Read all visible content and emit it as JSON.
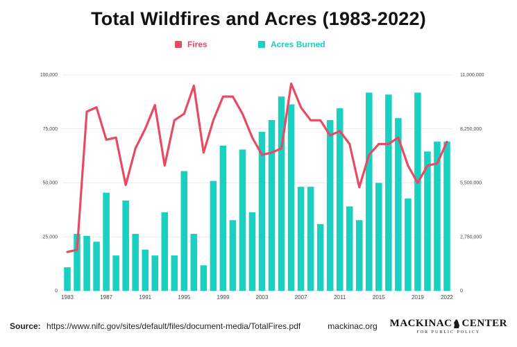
{
  "page": {
    "title": "Total Wildfires and Acres (1983-2022)"
  },
  "colors": {
    "fires": "#e84a63",
    "acres": "#19d1c1",
    "grid": "#d9d9d9",
    "axis": "#444444"
  },
  "legend": {
    "fires_label": "Fires",
    "acres_label": "Acres Burned"
  },
  "footer": {
    "source_label": "Source:",
    "source_text": "https://www.nifc.gov/sites/default/files/document-media/TotalFires.pdf",
    "site": "mackinac.org",
    "brand_left": "MACKINAC",
    "brand_right": "CENTER",
    "brand_sub": "FOR PUBLIC POLICY"
  },
  "chart_data": {
    "type": "bar",
    "title": "Total Wildfires and Acres (1983-2022)",
    "xlabel": "",
    "ylabel_left": "",
    "ylabel_right": "",
    "grid": true,
    "legend_position": "top-center",
    "x": [
      1983,
      1984,
      1985,
      1986,
      1987,
      1988,
      1989,
      1990,
      1991,
      1992,
      1993,
      1994,
      1995,
      1996,
      1997,
      1998,
      1999,
      2000,
      2001,
      2002,
      2003,
      2004,
      2005,
      2006,
      2007,
      2008,
      2009,
      2010,
      2011,
      2012,
      2013,
      2014,
      2015,
      2016,
      2017,
      2018,
      2019,
      2020,
      2021,
      2022
    ],
    "x_tick_labels": [
      "1983",
      "1987",
      "1991",
      "1995",
      "1999",
      "2003",
      "2007",
      "2011",
      "2015",
      "2019",
      "2022"
    ],
    "left_axis": {
      "ylim": [
        0,
        100000
      ],
      "ticks": [
        0,
        25000,
        50000,
        75000,
        100000
      ],
      "tick_labels": [
        "0",
        "25,000",
        "50,000",
        "75,000",
        "100,000"
      ]
    },
    "right_axis": {
      "ylim": [
        0,
        11000000
      ],
      "ticks": [
        0,
        2750000,
        5500000,
        8250000,
        11000000
      ],
      "tick_labels": [
        "0",
        "2,750,000",
        "5,500,000",
        "8,250,000",
        "11,000,000"
      ]
    },
    "series": [
      {
        "name": "Acres Burned",
        "kind": "bar",
        "axis": "right",
        "values": [
          1200000,
          2900000,
          2800000,
          2500000,
          5000000,
          1800000,
          4600000,
          2900000,
          2100000,
          1800000,
          4000000,
          1800000,
          6100000,
          2900000,
          1300000,
          5600000,
          7400000,
          3600000,
          7200000,
          4000000,
          8100000,
          8700000,
          9900000,
          9500000,
          5300000,
          5300000,
          3400000,
          8700000,
          9300000,
          4300000,
          3600000,
          10100000,
          5500000,
          10000000,
          8800000,
          4700000,
          10100000,
          7100000,
          7600000,
          7600000
        ]
      },
      {
        "name": "Fires",
        "kind": "line",
        "axis": "left",
        "values": [
          18000,
          19000,
          83000,
          85000,
          70000,
          71000,
          49000,
          66000,
          75000,
          86000,
          58000,
          79000,
          82000,
          95000,
          64000,
          79000,
          90000,
          90000,
          82000,
          71000,
          63000,
          64000,
          66000,
          96000,
          85000,
          79000,
          79000,
          72000,
          74000,
          68000,
          48000,
          63000,
          68000,
          68000,
          71000,
          58000,
          50000,
          58000,
          59000,
          69000
        ]
      }
    ]
  }
}
